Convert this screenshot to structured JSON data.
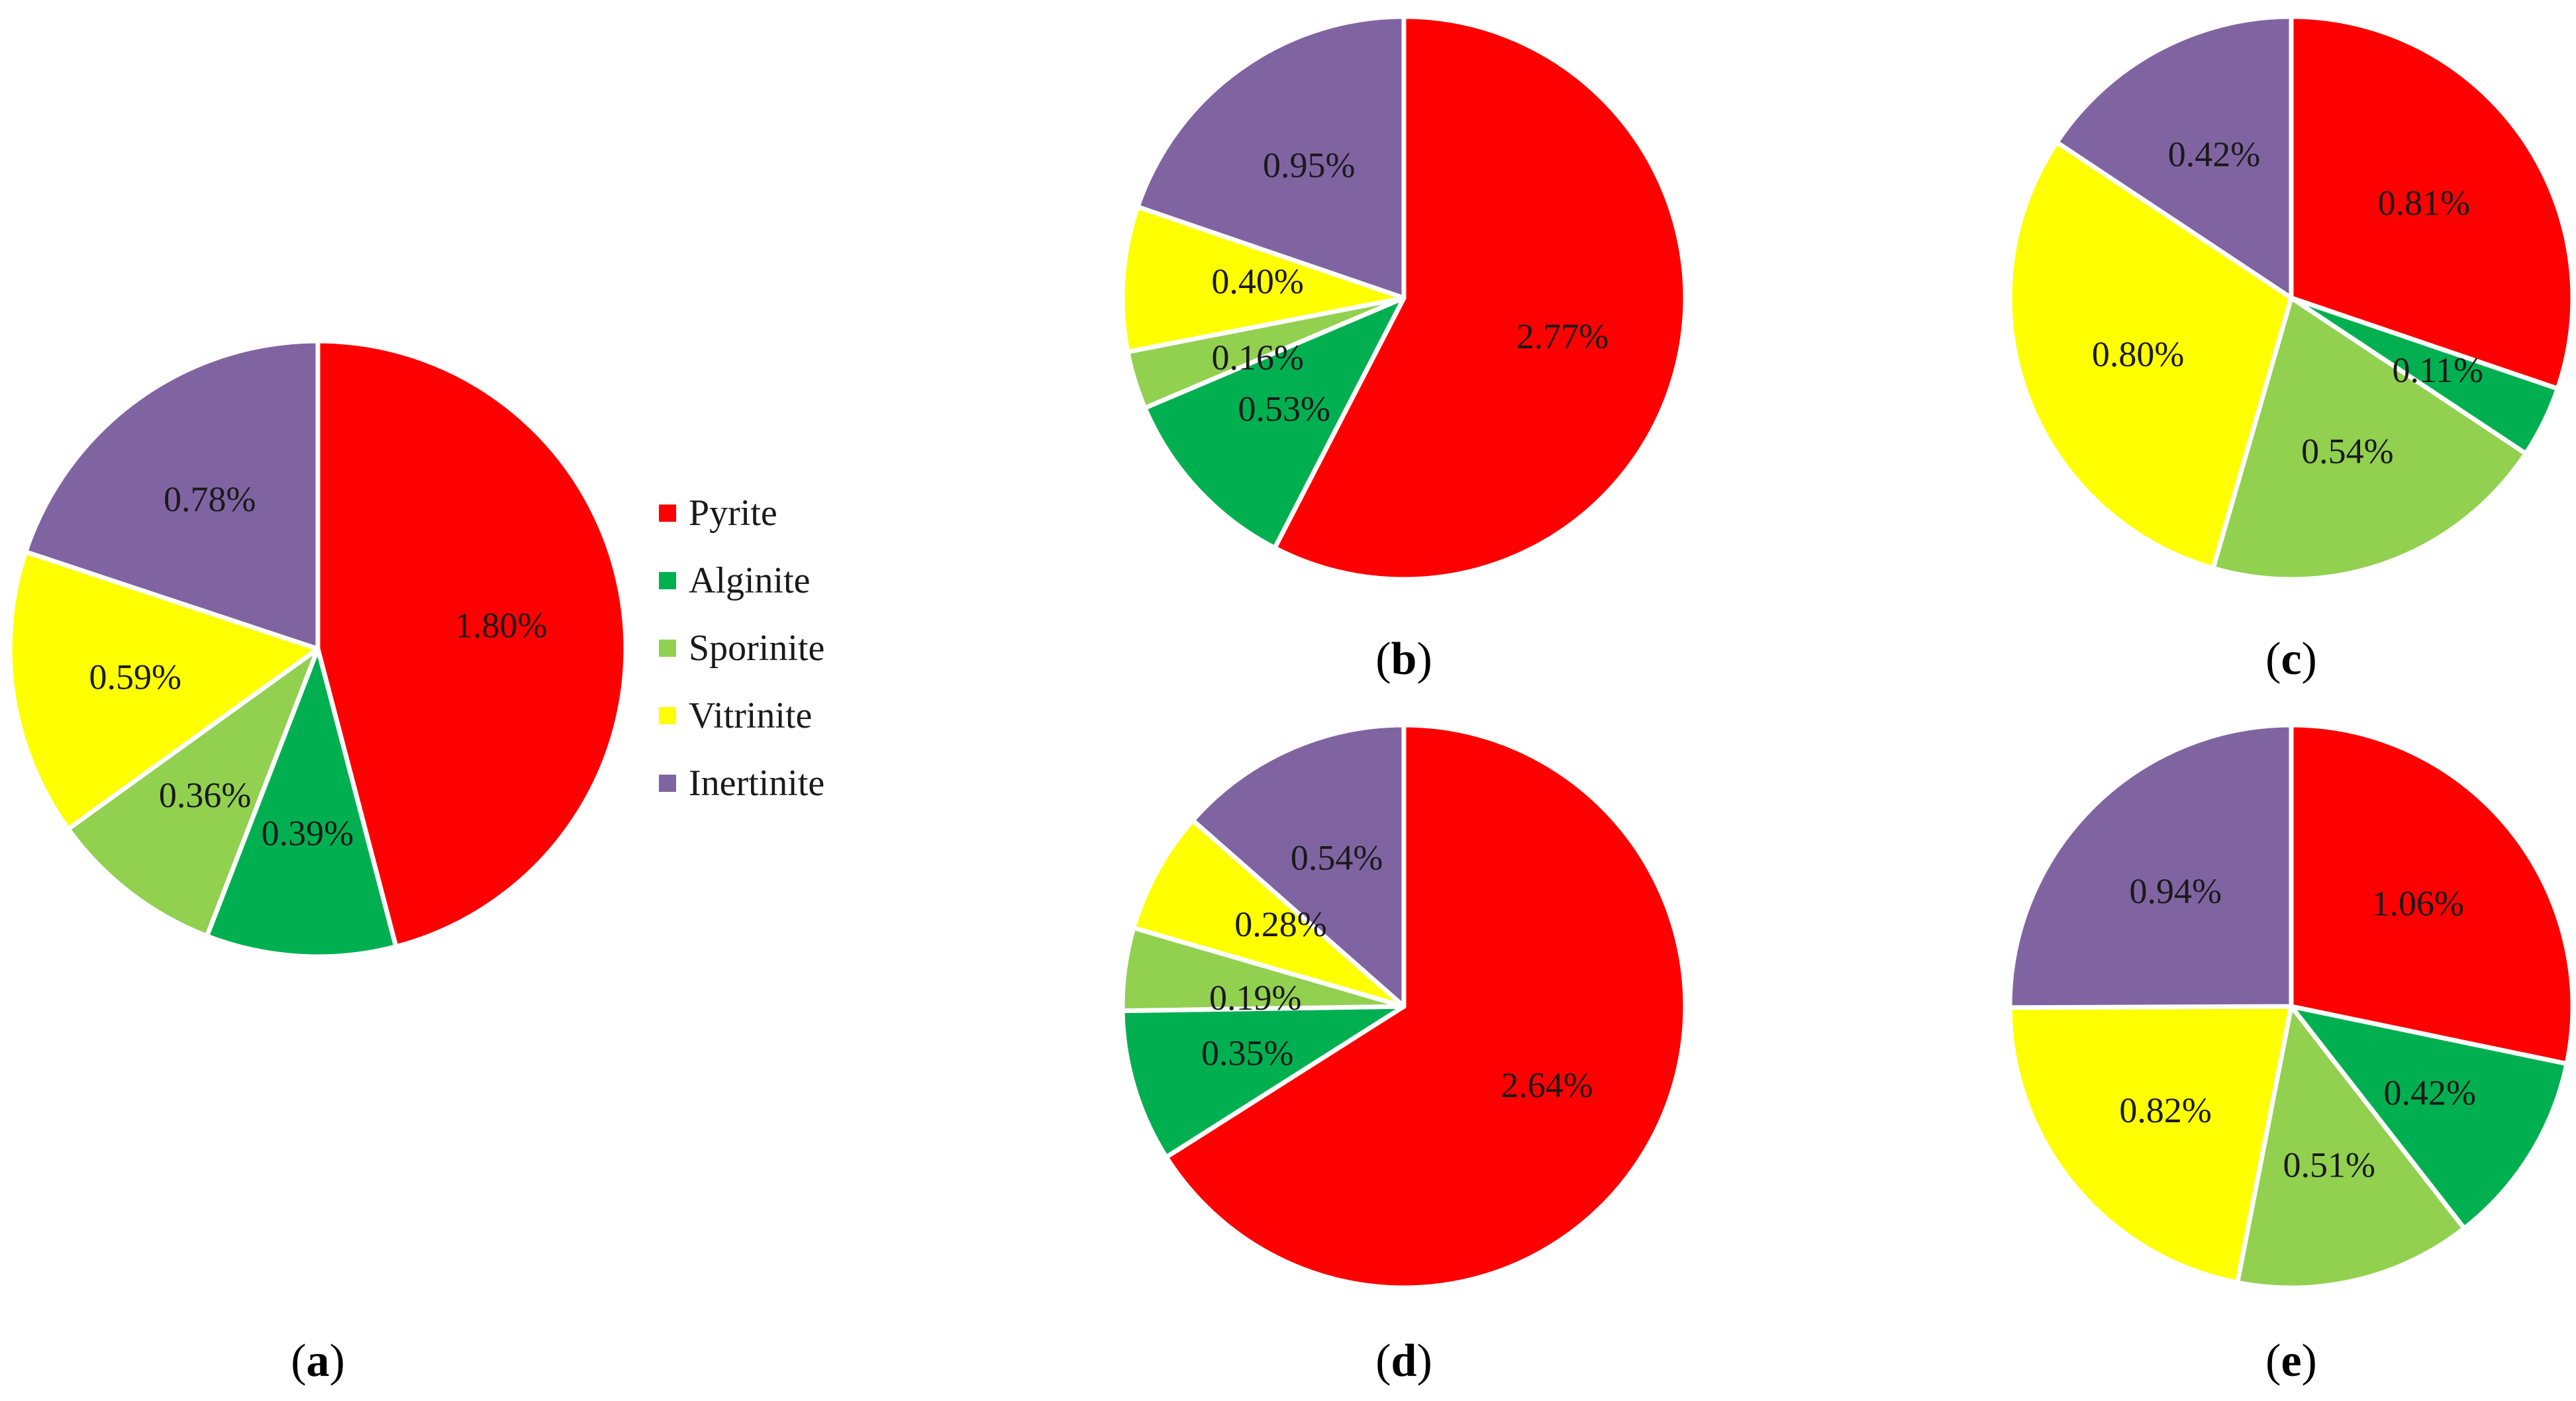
{
  "legend": {
    "placement": "right-of-panel-a",
    "entries": [
      {
        "name": "Pyrite",
        "color": "#ff0000"
      },
      {
        "name": "Alginite",
        "color": "#00b050"
      },
      {
        "name": "Sporinite",
        "color": "#92d050"
      },
      {
        "name": "Vitrinite",
        "color": "#ffff00"
      },
      {
        "name": "Inertinite",
        "color": "#8064a2"
      }
    ]
  },
  "chart_data": [
    {
      "type": "pie",
      "panel": "a",
      "caption": "(a)",
      "categories": [
        "Pyrite",
        "Alginite",
        "Sporinite",
        "Vitrinite",
        "Inertinite"
      ],
      "values": [
        1.8,
        0.39,
        0.36,
        0.59,
        0.78
      ],
      "labels": [
        "1.80%",
        "0.39%",
        "0.36%",
        "0.59%",
        "0.78%"
      ]
    },
    {
      "type": "pie",
      "panel": "b",
      "caption": "(b)",
      "categories": [
        "Pyrite",
        "Alginite",
        "Sporinite",
        "Vitrinite",
        "Inertinite"
      ],
      "values": [
        2.77,
        0.53,
        0.16,
        0.4,
        0.95
      ],
      "labels": [
        "2.77%",
        "0.53%",
        "0.16%",
        "0.40%",
        "0.95%"
      ]
    },
    {
      "type": "pie",
      "panel": "c",
      "caption": "(c)",
      "categories": [
        "Pyrite",
        "Alginite",
        "Sporinite",
        "Vitrinite",
        "Inertinite"
      ],
      "values": [
        0.81,
        0.11,
        0.54,
        0.8,
        0.42
      ],
      "labels": [
        "0.81%",
        "0.11%",
        "0.54%",
        "0.80%",
        "0.42%"
      ]
    },
    {
      "type": "pie",
      "panel": "d",
      "caption": "(d)",
      "categories": [
        "Pyrite",
        "Alginite",
        "Sporinite",
        "Vitrinite",
        "Inertinite"
      ],
      "values": [
        2.64,
        0.35,
        0.19,
        0.28,
        0.54
      ],
      "labels": [
        "2.64%",
        "0.35%",
        "0.19%",
        "0.28%",
        "0.54%"
      ]
    },
    {
      "type": "pie",
      "panel": "e",
      "caption": "(e)",
      "categories": [
        "Pyrite",
        "Alginite",
        "Sporinite",
        "Vitrinite",
        "Inertinite"
      ],
      "values": [
        1.06,
        0.42,
        0.51,
        0.82,
        0.94
      ],
      "labels": [
        "1.06%",
        "0.42%",
        "0.51%",
        "0.82%",
        "0.94%"
      ]
    }
  ]
}
